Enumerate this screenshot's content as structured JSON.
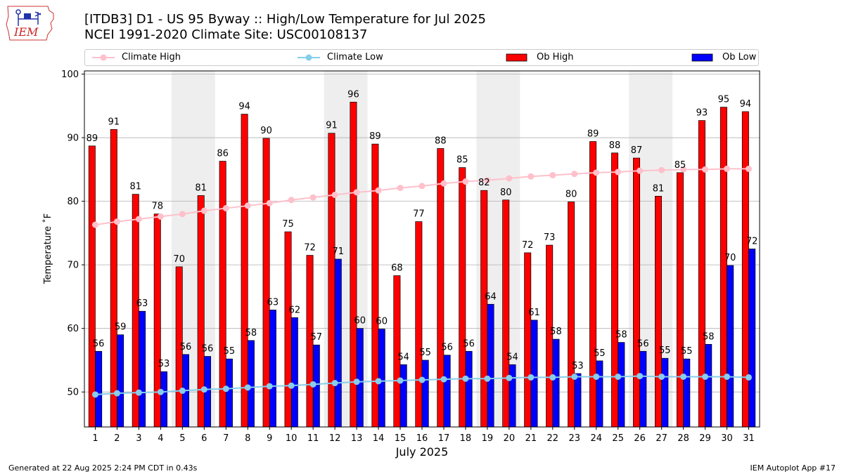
{
  "header": {
    "title_line1": "[ITDB3] D1 - US 95 Byway  :: High/Low Temperature for Jul 2025",
    "title_line2": "NCEI 1991-2020 Climate Site: USC00108137"
  },
  "logo": {
    "text": "IEM"
  },
  "footer": {
    "generated": "Generated at 22 Aug 2025 2:24 PM CDT in 0.43s",
    "app": "IEM Autoplot App #17"
  },
  "colors": {
    "climate_high": "#ffc0cb",
    "climate_low": "#87ceeb",
    "ob_high": "#ff0000",
    "ob_low": "#0000ff",
    "weekend_band": "#eeeeee",
    "grid": "#b0b0b0"
  },
  "legend": {
    "climate_high": "Climate High",
    "climate_low": "Climate Low",
    "ob_high": "Ob High",
    "ob_low": "Ob Low"
  },
  "chart_data": {
    "type": "bar",
    "xlabel": "July 2025",
    "ylabel": "Temperature ˚F",
    "ylim": [
      44.5,
      100.5
    ],
    "yticks": [
      50,
      60,
      70,
      80,
      90,
      100
    ],
    "grid": true,
    "legend_position": "top",
    "categories": [
      "1",
      "2",
      "3",
      "4",
      "5",
      "6",
      "7",
      "8",
      "9",
      "10",
      "11",
      "12",
      "13",
      "14",
      "15",
      "16",
      "17",
      "18",
      "19",
      "20",
      "21",
      "22",
      "23",
      "24",
      "25",
      "26",
      "27",
      "28",
      "29",
      "30",
      "31"
    ],
    "weekend_bands": [
      [
        5,
        6
      ],
      [
        12,
        13
      ],
      [
        19,
        20
      ],
      [
        26,
        27
      ]
    ],
    "series": [
      {
        "name": "Ob High",
        "type": "bar",
        "values": [
          88.7,
          91.3,
          81.1,
          78.0,
          69.7,
          80.9,
          86.3,
          93.7,
          89.9,
          75.2,
          71.5,
          90.7,
          95.6,
          89.0,
          68.3,
          76.8,
          88.3,
          85.3,
          81.7,
          80.2,
          71.9,
          73.1,
          79.9,
          89.4,
          87.6,
          86.8,
          80.8,
          84.5,
          92.7,
          94.8,
          94.1
        ],
        "labels": [
          "89",
          "91",
          "81",
          "78",
          "70",
          "81",
          "86",
          "94",
          "90",
          "75",
          "72",
          "91",
          "96",
          "89",
          "68",
          "77",
          "88",
          "85",
          "82",
          "80",
          "72",
          "73",
          "80",
          "89",
          "88",
          "87",
          "81",
          "85",
          "93",
          "95",
          "94"
        ]
      },
      {
        "name": "Ob Low",
        "type": "bar",
        "values": [
          56.4,
          59.0,
          62.7,
          53.2,
          55.9,
          55.6,
          55.2,
          58.1,
          62.9,
          61.7,
          57.4,
          70.9,
          60.0,
          59.9,
          54.3,
          55.0,
          55.8,
          56.4,
          63.8,
          54.3,
          61.3,
          58.3,
          52.9,
          54.9,
          57.8,
          56.4,
          55.3,
          55.2,
          57.5,
          69.9,
          72.5
        ],
        "labels": [
          "56",
          "59",
          "63",
          "53",
          "56",
          "56",
          "55",
          "58",
          "63",
          "62",
          "57",
          "71",
          "60",
          "60",
          "54",
          "55",
          "56",
          "56",
          "64",
          "54",
          "61",
          "58",
          "53",
          "55",
          "58",
          "56",
          "55",
          "55",
          "58",
          "70",
          "72"
        ]
      },
      {
        "name": "Climate High",
        "type": "line",
        "values": [
          76.3,
          76.8,
          77.2,
          77.6,
          78.0,
          78.5,
          78.9,
          79.3,
          79.7,
          80.2,
          80.6,
          81.0,
          81.4,
          81.7,
          82.1,
          82.4,
          82.8,
          83.1,
          83.3,
          83.6,
          83.9,
          84.1,
          84.3,
          84.5,
          84.6,
          84.8,
          84.9,
          85.0,
          85.0,
          85.1,
          85.1
        ]
      },
      {
        "name": "Climate Low",
        "type": "line",
        "values": [
          49.6,
          49.8,
          49.9,
          50.0,
          50.2,
          50.4,
          50.5,
          50.7,
          50.9,
          51.0,
          51.2,
          51.4,
          51.6,
          51.7,
          51.8,
          51.9,
          52.0,
          52.1,
          52.1,
          52.2,
          52.3,
          52.3,
          52.4,
          52.4,
          52.4,
          52.5,
          52.4,
          52.4,
          52.4,
          52.4,
          52.3
        ]
      }
    ]
  }
}
